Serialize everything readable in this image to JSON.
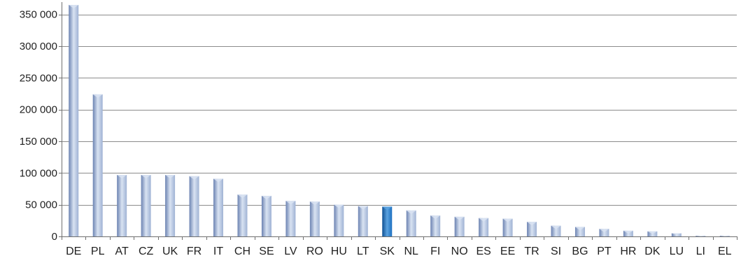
{
  "chart_data": {
    "type": "bar",
    "title": "",
    "xlabel": "",
    "ylabel": "",
    "categories": [
      "DE",
      "PL",
      "AT",
      "CZ",
      "UK",
      "FR",
      "IT",
      "CH",
      "SE",
      "LV",
      "RO",
      "HU",
      "LT",
      "SK",
      "NL",
      "FI",
      "NO",
      "ES",
      "EE",
      "TR",
      "SI",
      "BG",
      "PT",
      "HR",
      "DK",
      "LU",
      "LI",
      "EL"
    ],
    "values": [
      365000,
      224000,
      97000,
      97000,
      97000,
      95000,
      91000,
      66000,
      64000,
      56000,
      55000,
      50000,
      48000,
      47000,
      41000,
      33000,
      31000,
      29000,
      28000,
      23000,
      17000,
      15000,
      12000,
      9000,
      8000,
      5000,
      1000,
      1000
    ],
    "highlight_category": "SK",
    "ylim": [
      0,
      365000
    ],
    "yticks": [
      0,
      50000,
      100000,
      150000,
      200000,
      250000,
      300000,
      350000
    ],
    "ytick_labels": [
      "0",
      "50 000",
      "100 000",
      "150 000",
      "200 000",
      "250 000",
      "300 000",
      "350 000"
    ],
    "grid": true,
    "legend": "none",
    "colors": {
      "bar_light": "#d9e3f2",
      "bar_mid": "#9fb2d4",
      "bar_dark": "#6c83b2",
      "highlight_light": "#5aa2df",
      "highlight_mid": "#1c6fc0",
      "highlight_dark": "#0e4f93",
      "gridline": "#8c8c8c",
      "axis": "#6f6f6f",
      "text": "#1f1f1f"
    }
  }
}
